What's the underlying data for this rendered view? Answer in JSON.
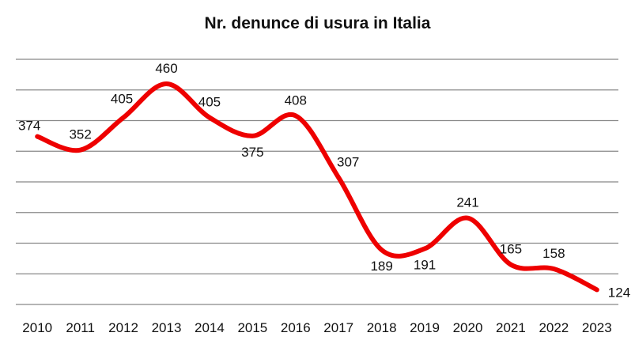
{
  "chart_data": {
    "type": "line",
    "title": "Nr. denunce di usura in Italia",
    "xlabel": "",
    "ylabel": "",
    "categories": [
      "2010",
      "2011",
      "2012",
      "2013",
      "2014",
      "2015",
      "2016",
      "2017",
      "2018",
      "2019",
      "2020",
      "2021",
      "2022",
      "2023"
    ],
    "series": [
      {
        "values": [
          374,
          352,
          405,
          460,
          405,
          375,
          408,
          307,
          189,
          191,
          241,
          165,
          158,
          124
        ]
      }
    ],
    "ylim": [
      100,
      500
    ],
    "grid": true,
    "legend": "none",
    "line_color": "#ee0000",
    "grid_color": "#888888"
  }
}
